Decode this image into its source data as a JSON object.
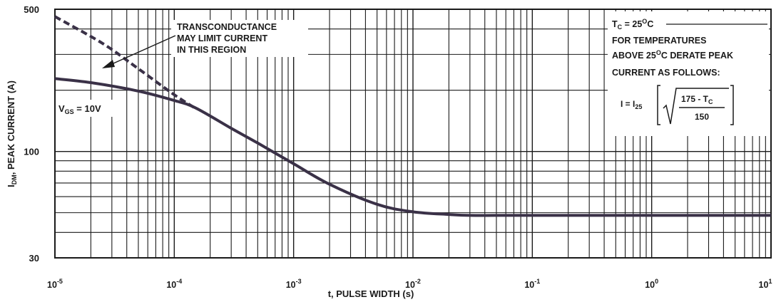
{
  "chart_data": {
    "type": "line",
    "xscale": "log",
    "yscale": "log",
    "xlim": [
      1e-05,
      10
    ],
    "ylim": [
      30,
      500
    ],
    "grid": true,
    "xlabel": "t, PULSE WIDTH (s)",
    "ylabel": {
      "main": "I",
      "sub": "DM",
      "rest": ", PEAK CURRENT (A)"
    },
    "x_ticks": [
      {
        "value": 1e-05,
        "base": "10",
        "exp": "-5"
      },
      {
        "value": 0.0001,
        "base": "10",
        "exp": "-4"
      },
      {
        "value": 0.001,
        "base": "10",
        "exp": "-3"
      },
      {
        "value": 0.01,
        "base": "10",
        "exp": "-2"
      },
      {
        "value": 0.1,
        "base": "10",
        "exp": "-1"
      },
      {
        "value": 1,
        "base": "10",
        "exp": "0"
      },
      {
        "value": 10,
        "base": "10",
        "exp": "1"
      }
    ],
    "y_ticks": [
      {
        "value": 500,
        "label": "500"
      },
      {
        "value": 100,
        "label": "100"
      },
      {
        "value": 30,
        "label": "30"
      }
    ],
    "series": [
      {
        "name": "V_GS = 10V",
        "style": "solid",
        "color": "#3a3147",
        "x": [
          1e-05,
          2e-05,
          5e-05,
          0.0001,
          0.00015,
          0.0003,
          0.0005,
          0.001,
          0.002,
          0.005,
          0.01,
          0.02,
          0.03,
          0.05,
          0.1,
          1,
          10
        ],
        "y": [
          228,
          218,
          198,
          178,
          164,
          130,
          110,
          87,
          69,
          55,
          50.5,
          49,
          48.5,
          48.5,
          48.5,
          48.5,
          48.5
        ]
      },
      {
        "name": "TRANSCONDUCTANCE LIMIT",
        "style": "dashed",
        "color": "#3a3147",
        "x": [
          1e-05,
          2.5e-05,
          5e-05,
          0.0001,
          0.00015
        ],
        "y": [
          460,
          340,
          255,
          190,
          163
        ]
      }
    ],
    "annotations": {
      "vgs": {
        "main": "V",
        "sub": "GS",
        "rest": " = 10V"
      },
      "transconductance": [
        "TRANSCONDUCTANCE",
        "MAY LIMIT CURRENT",
        "IN THIS REGION"
      ],
      "temp_box": {
        "tc_line": {
          "main": "T",
          "sub": "C",
          "rest1": " = 25",
          "sup": "O",
          "rest2": "C"
        },
        "lines": [
          "FOR TEMPERATURES"
        ],
        "above_line": {
          "pre": "ABOVE 25",
          "sup": "O",
          "post": "C DERATE PEAK"
        },
        "current_line": "CURRENT AS FOLLOWS:",
        "formula": {
          "lhs": "I = I",
          "lhs_sub": "25",
          "numerator": "175 - T",
          "numerator_sub": "C",
          "denominator": "150"
        }
      }
    }
  }
}
